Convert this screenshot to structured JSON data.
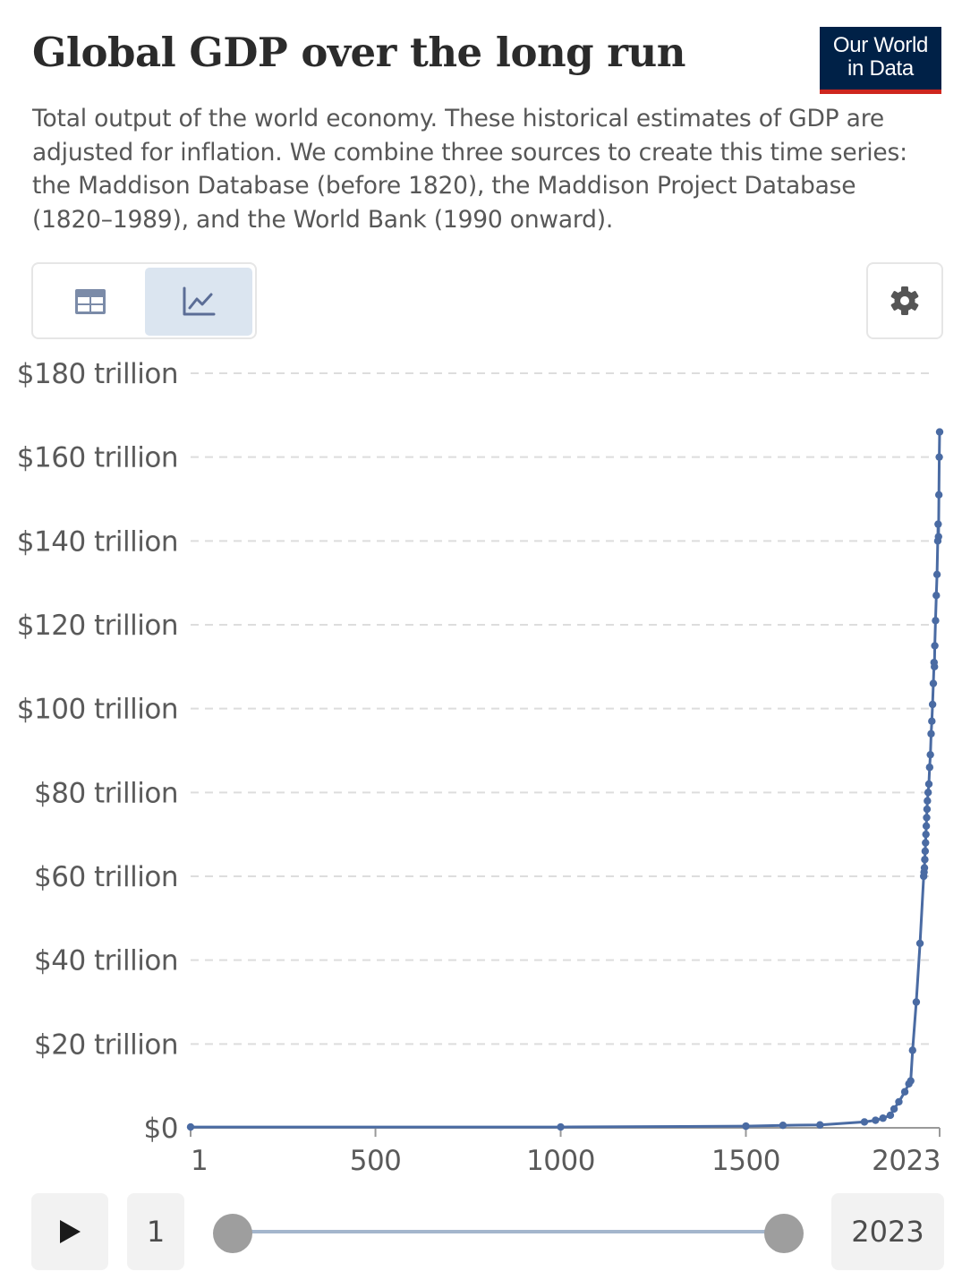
{
  "header": {
    "title": "Global GDP over the long run",
    "subtitle": "Total output of the world economy. These historical estimates of GDP are adjusted for inflation. We combine three sources to create this time series: the Maddison Database (before 1820), the Maddison Project Database (1820–1989), and the World Bank (1990 onward).",
    "logo_line1": "Our World",
    "logo_line2": "in Data"
  },
  "colors": {
    "series": "#4a6ba3",
    "grid": "#dddddd",
    "logo_bg": "#002147",
    "logo_accent": "#ce261e",
    "active_tab": "#dbe5f0"
  },
  "controls": {
    "table_icon": "table-icon",
    "chart_icon": "line-chart-icon",
    "active_view": "chart",
    "settings_icon": "gear-icon",
    "play_icon": "play-icon"
  },
  "timeline": {
    "start_year": "1",
    "end_year": "2023"
  },
  "chart_data": {
    "type": "line",
    "title": "Global GDP over the long run",
    "xlim": [
      1,
      2023
    ],
    "ylim": [
      0,
      180
    ],
    "y_unit": "trillion international-$",
    "grid": "horizontal dashed",
    "x_ticks": [
      {
        "value": 1,
        "label": "1"
      },
      {
        "value": 500,
        "label": "500"
      },
      {
        "value": 1000,
        "label": "1000"
      },
      {
        "value": 1500,
        "label": "1500"
      },
      {
        "value": 2023,
        "label": "2023"
      }
    ],
    "y_ticks": [
      {
        "value": 0,
        "label": "$0"
      },
      {
        "value": 20,
        "label": "$20 trillion"
      },
      {
        "value": 40,
        "label": "$40 trillion"
      },
      {
        "value": 60,
        "label": "$60 trillion"
      },
      {
        "value": 80,
        "label": "$80 trillion"
      },
      {
        "value": 100,
        "label": "$100 trillion"
      },
      {
        "value": 120,
        "label": "$120 trillion"
      },
      {
        "value": 140,
        "label": "$140 trillion"
      },
      {
        "value": 160,
        "label": "$160 trillion"
      },
      {
        "value": 180,
        "label": "$180 trillion"
      }
    ],
    "series": [
      {
        "x": [
          1,
          1000,
          1500,
          1600,
          1700,
          1820,
          1850,
          1870,
          1890,
          1900,
          1913,
          1929,
          1940,
          1945,
          1950,
          1960,
          1970,
          1980,
          1981,
          1982,
          1983,
          1984,
          1985,
          1986,
          1987,
          1988,
          1989,
          1990,
          1992,
          1994,
          1996,
          1998,
          2000,
          2002,
          2004,
          2006,
          2008,
          2009,
          2010,
          2012,
          2014,
          2016,
          2018,
          2019,
          2020,
          2021,
          2022,
          2023
        ],
        "y": [
          0.2,
          0.2,
          0.4,
          0.6,
          0.7,
          1.4,
          1.8,
          2.3,
          3.0,
          4.5,
          6.2,
          8.6,
          10.5,
          11.2,
          18.5,
          30.0,
          44.0,
          60.0,
          61.0,
          62.0,
          64.0,
          66.0,
          68.0,
          70.0,
          72.0,
          74.0,
          76.0,
          78.0,
          80.0,
          82.0,
          86.0,
          89.0,
          94.0,
          97.0,
          101.0,
          106.0,
          111.0,
          110.0,
          115.0,
          121.0,
          127.0,
          132.0,
          140.0,
          144.0,
          141.0,
          151.0,
          160.0,
          166.0
        ]
      }
    ]
  }
}
